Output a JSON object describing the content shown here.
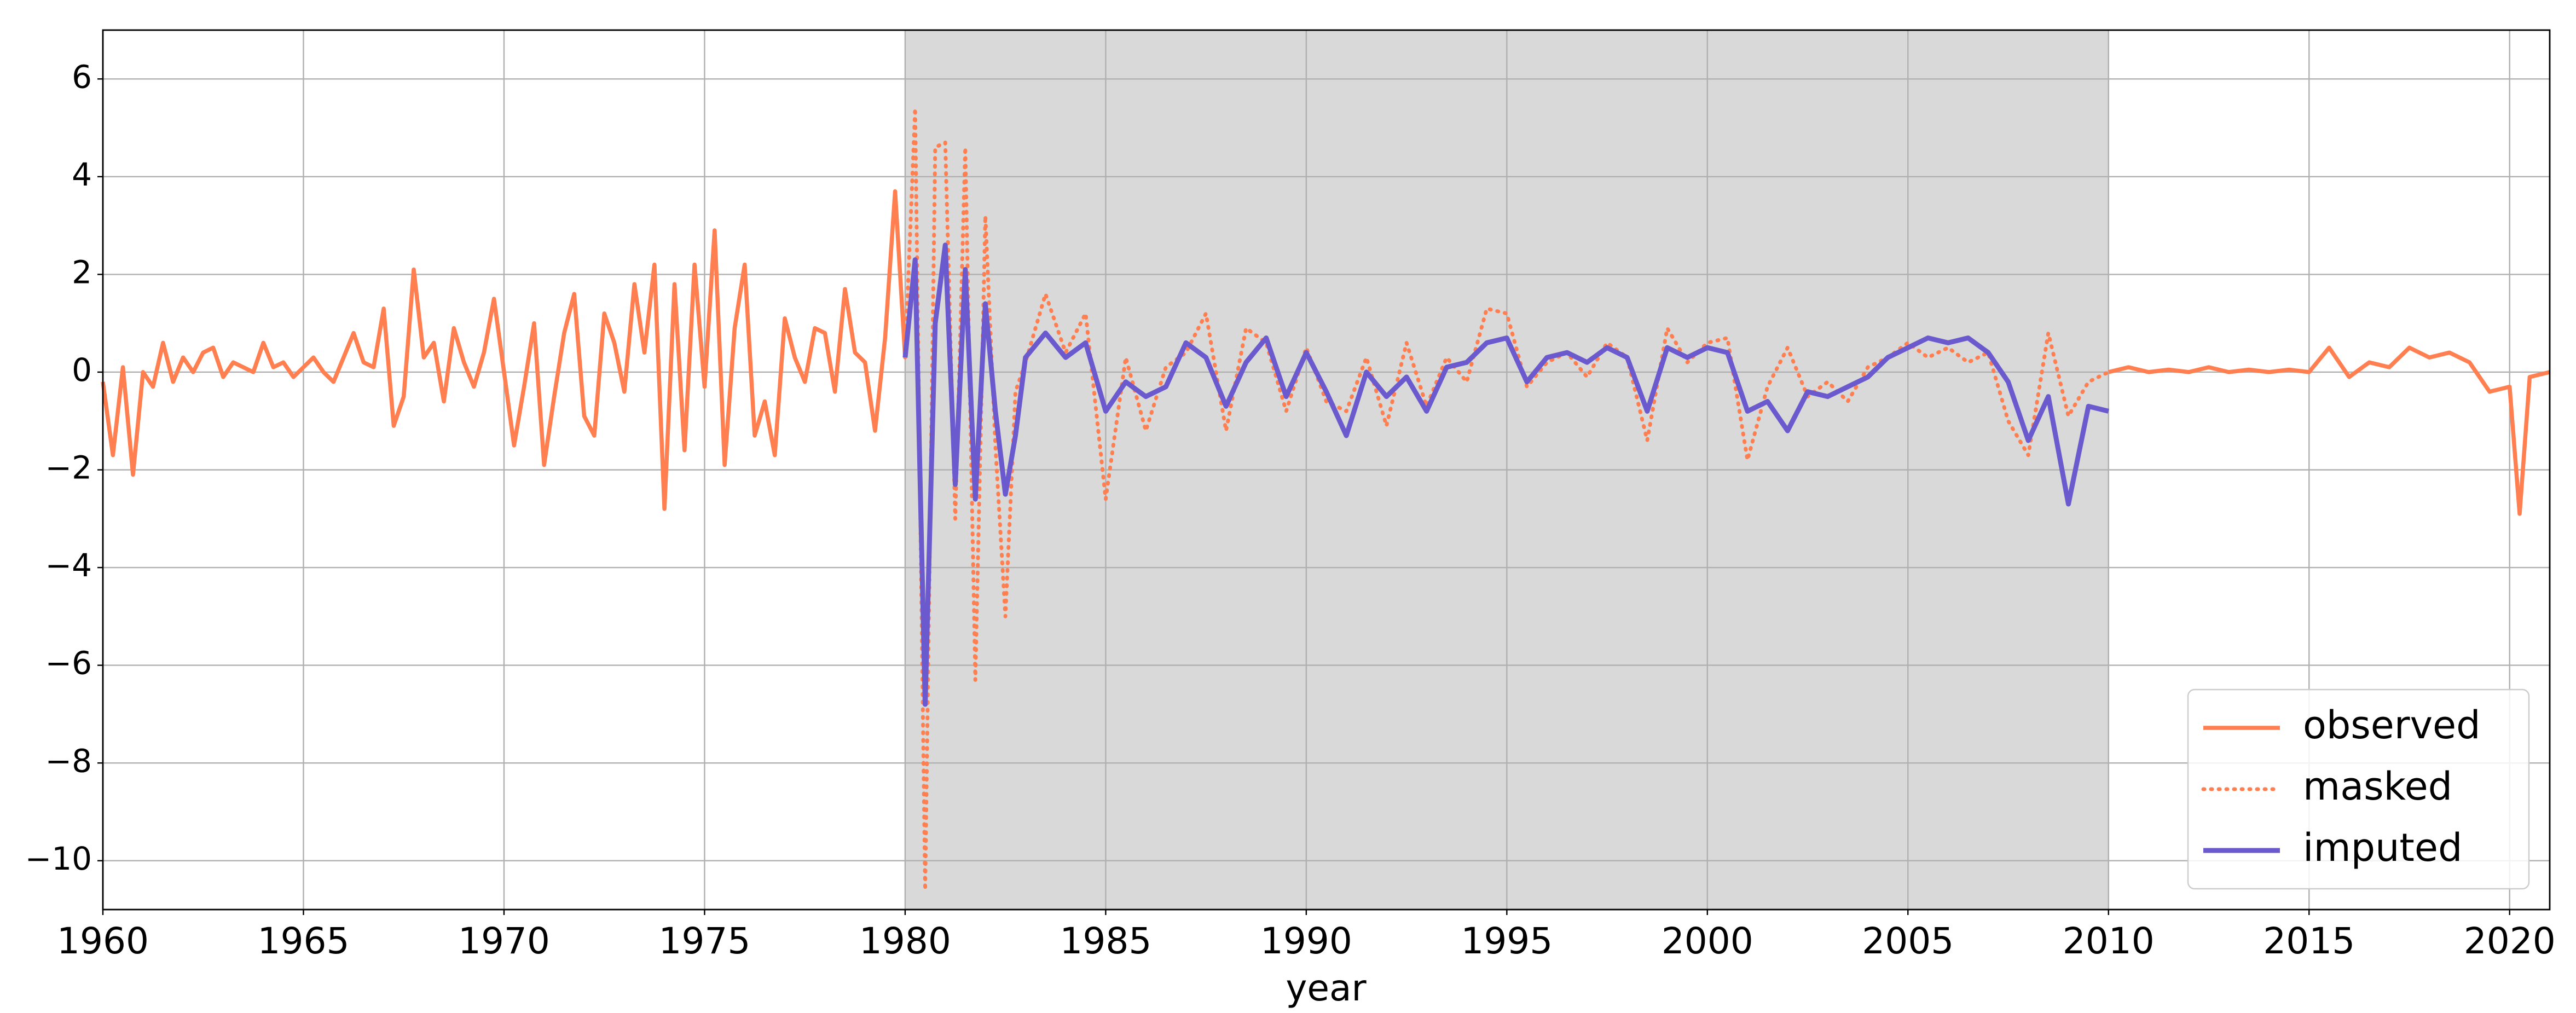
{
  "chart_data": {
    "type": "line",
    "xlabel": "year",
    "xlim": [
      1960,
      2021
    ],
    "xticks": [
      1960,
      1965,
      1970,
      1975,
      1980,
      1985,
      1990,
      1995,
      2000,
      2005,
      2010,
      2015,
      2020
    ],
    "ylim": [
      -11,
      7
    ],
    "yticks": [
      {
        "value": -10,
        "label": "−10"
      },
      {
        "value": -8,
        "label": "−8"
      },
      {
        "value": -6,
        "label": "−6"
      },
      {
        "value": -4,
        "label": "−4"
      },
      {
        "value": -2,
        "label": "−2"
      },
      0,
      2,
      4,
      6
    ],
    "grid": true,
    "legend": "lower right",
    "shade": {
      "xlim": [
        1980,
        2010
      ],
      "color": "#d9d9d9"
    },
    "series": [
      {
        "name": "observed",
        "color": "#ff7f50",
        "style": "solid",
        "x": [
          1960,
          1960.25,
          1960.5,
          1960.75,
          1961,
          1961.25,
          1961.5,
          1961.75,
          1962,
          1962.25,
          1962.5,
          1962.75,
          1963,
          1963.25,
          1963.5,
          1963.75,
          1964,
          1964.25,
          1964.5,
          1964.75,
          1965,
          1965.25,
          1965.5,
          1965.75,
          1966,
          1966.25,
          1966.5,
          1966.75,
          1967,
          1967.25,
          1967.5,
          1967.75,
          1968,
          1968.25,
          1968.5,
          1968.75,
          1969,
          1969.25,
          1969.5,
          1969.75,
          1970,
          1970.25,
          1970.5,
          1970.75,
          1971,
          1971.25,
          1971.5,
          1971.75,
          1972,
          1972.25,
          1972.5,
          1972.75,
          1973,
          1973.25,
          1973.5,
          1973.75,
          1974,
          1974.25,
          1974.5,
          1974.75,
          1975,
          1975.25,
          1975.5,
          1975.75,
          1976,
          1976.25,
          1976.5,
          1976.75,
          1977,
          1977.25,
          1977.5,
          1977.75,
          1978,
          1978.25,
          1978.5,
          1978.75,
          1979,
          1979.25,
          1979.5,
          1979.75,
          1980,
          null,
          2010,
          2010.5,
          2011,
          2011.5,
          2012,
          2012.5,
          2013,
          2013.5,
          2014,
          2014.5,
          2015,
          2015.5,
          2016,
          2016.5,
          2017,
          2017.5,
          2018,
          2018.5,
          2019,
          2019.5,
          2020,
          2020.25,
          2020.5,
          2021
        ],
        "values": [
          -0.2,
          -1.7,
          0.1,
          -2.1,
          0.0,
          -0.3,
          0.6,
          -0.2,
          0.3,
          0.0,
          0.4,
          0.5,
          -0.1,
          0.2,
          0.1,
          0.0,
          0.6,
          0.1,
          0.2,
          -0.1,
          0.1,
          0.3,
          0.0,
          -0.2,
          0.3,
          0.8,
          0.2,
          0.1,
          1.3,
          -1.1,
          -0.5,
          2.1,
          0.3,
          0.6,
          -0.6,
          0.9,
          0.2,
          -0.3,
          0.4,
          1.5,
          0.0,
          -1.5,
          -0.3,
          1.0,
          -1.9,
          -0.5,
          0.8,
          1.6,
          -0.9,
          -1.3,
          1.2,
          0.6,
          -0.4,
          1.8,
          0.4,
          2.2,
          -2.8,
          1.8,
          -1.6,
          2.2,
          -0.3,
          2.9,
          -1.9,
          0.9,
          2.2,
          -1.3,
          -0.6,
          -1.7,
          1.1,
          0.3,
          -0.2,
          0.9,
          0.8,
          -0.4,
          1.7,
          0.4,
          0.2,
          -1.2,
          0.7,
          3.7,
          0.3,
          null,
          0.0,
          0.1,
          0.0,
          0.05,
          0.0,
          0.1,
          0.0,
          0.05,
          0.0,
          0.05,
          0.0,
          0.5,
          -0.1,
          0.2,
          0.1,
          0.5,
          0.3,
          0.4,
          0.2,
          -0.4,
          -0.3,
          -2.9,
          -0.1,
          0.0
        ]
      },
      {
        "name": "masked",
        "color": "#ff7f50",
        "style": "dotted",
        "x": [
          1980,
          1980.25,
          1980.5,
          1980.75,
          1981,
          1981.25,
          1981.5,
          1981.75,
          1982,
          1982.25,
          1982.5,
          1982.75,
          1983,
          1983.5,
          1984,
          1984.5,
          1985,
          1985.5,
          1986,
          1986.5,
          1987,
          1987.5,
          1988,
          1988.5,
          1989,
          1989.5,
          1990,
          1990.5,
          1991,
          1991.5,
          1992,
          1992.5,
          1993,
          1993.5,
          1994,
          1994.5,
          1995,
          1995.5,
          1996,
          1996.5,
          1997,
          1997.5,
          1998,
          1998.5,
          1999,
          1999.5,
          2000,
          2000.5,
          2001,
          2001.5,
          2002,
          2002.5,
          2003,
          2003.5,
          2004,
          2004.5,
          2005,
          2005.5,
          2006,
          2006.5,
          2007,
          2007.5,
          2008,
          2008.5,
          2009,
          2009.5,
          2010
        ],
        "values": [
          0.3,
          5.4,
          -10.6,
          4.6,
          4.7,
          -3.0,
          4.6,
          -6.3,
          3.2,
          -1.5,
          -5.0,
          -0.4,
          0.2,
          1.6,
          0.4,
          1.2,
          -2.6,
          0.3,
          -1.2,
          0.1,
          0.4,
          1.2,
          -1.2,
          0.9,
          0.6,
          -0.8,
          0.5,
          -0.6,
          -0.8,
          0.3,
          -1.1,
          0.6,
          -0.7,
          0.3,
          -0.2,
          1.3,
          1.2,
          -0.3,
          0.2,
          0.4,
          -0.1,
          0.6,
          0.3,
          -1.4,
          0.9,
          0.2,
          0.6,
          0.7,
          -1.8,
          -0.3,
          0.5,
          -0.5,
          -0.2,
          -0.6,
          0.1,
          0.3,
          0.6,
          0.3,
          0.5,
          0.2,
          0.4,
          -1.0,
          -1.7,
          0.8,
          -0.9,
          -0.2,
          0.0
        ]
      },
      {
        "name": "imputed",
        "color": "#6a5acd",
        "style": "solid",
        "x": [
          1980,
          1980.25,
          1980.5,
          1980.75,
          1981,
          1981.25,
          1981.5,
          1981.75,
          1982,
          1982.25,
          1982.5,
          1982.75,
          1983,
          1983.5,
          1984,
          1984.5,
          1985,
          1985.5,
          1986,
          1986.5,
          1987,
          1987.5,
          1988,
          1988.5,
          1989,
          1989.5,
          1990,
          1990.5,
          1991,
          1991.5,
          1992,
          1992.5,
          1993,
          1993.5,
          1994,
          1994.5,
          1995,
          1995.5,
          1996,
          1996.5,
          1997,
          1997.5,
          1998,
          1998.5,
          1999,
          1999.5,
          2000,
          2000.5,
          2001,
          2001.5,
          2002,
          2002.5,
          2003,
          2003.5,
          2004,
          2004.5,
          2005,
          2005.5,
          2006,
          2006.5,
          2007,
          2007.5,
          2008,
          2008.5,
          2009,
          2009.5,
          2010
        ],
        "values": [
          0.3,
          2.3,
          -6.8,
          1.0,
          2.6,
          -2.3,
          2.1,
          -2.6,
          1.4,
          -0.8,
          -2.5,
          -1.3,
          0.3,
          0.8,
          0.3,
          0.6,
          -0.8,
          -0.2,
          -0.5,
          -0.3,
          0.6,
          0.3,
          -0.7,
          0.2,
          0.7,
          -0.5,
          0.4,
          -0.4,
          -1.3,
          0.0,
          -0.5,
          -0.1,
          -0.8,
          0.1,
          0.2,
          0.6,
          0.7,
          -0.2,
          0.3,
          0.4,
          0.2,
          0.5,
          0.3,
          -0.8,
          0.5,
          0.3,
          0.5,
          0.4,
          -0.8,
          -0.6,
          -1.2,
          -0.4,
          -0.5,
          -0.3,
          -0.1,
          0.3,
          0.5,
          0.7,
          0.6,
          0.7,
          0.4,
          -0.2,
          -1.4,
          -0.5,
          -2.7,
          -0.7,
          -0.8
        ]
      }
    ]
  }
}
